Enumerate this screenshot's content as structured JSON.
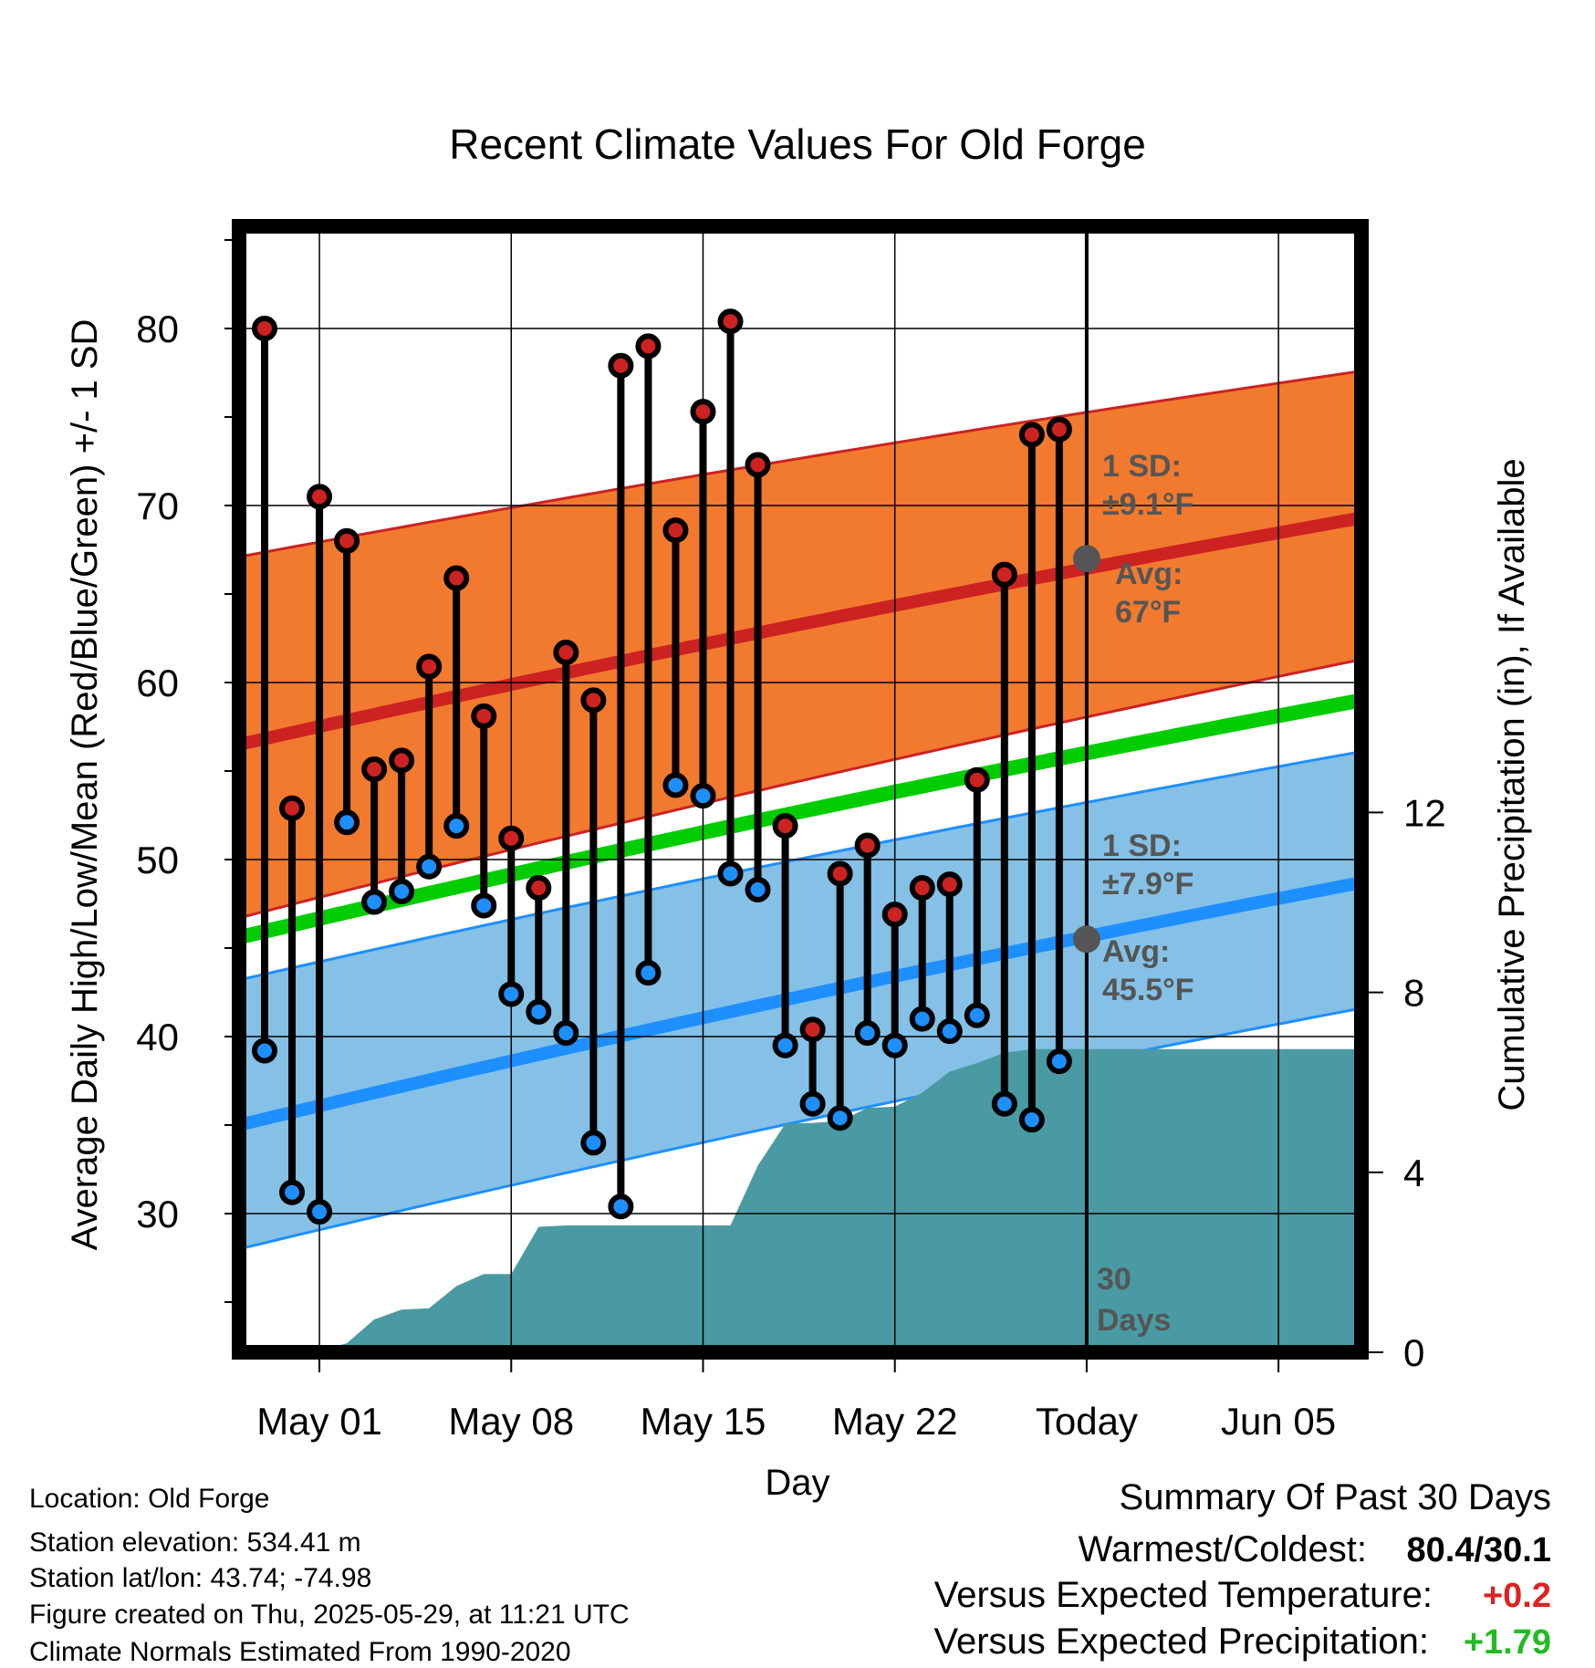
{
  "chart_data": {
    "type": "line",
    "title": "Recent Climate Values For Old Forge",
    "xlabel": "Day",
    "ylabel_left": "Average Daily High/Low/Mean (Red/Blue/Green) +/- 1 SD",
    "ylabel_right": "Cumulative Precipitation (in), If Available",
    "ylim_left": [
      22.5,
      86
    ],
    "ylim_right": [
      0,
      30
    ],
    "x_tick_labels": [
      "May 01",
      "May 08",
      "May 15",
      "May 22",
      "Today",
      "Jun 05"
    ],
    "y_tick_labels_left": [
      "30",
      "40",
      "50",
      "60",
      "70",
      "80"
    ],
    "y_tick_labels_right": [
      "0",
      "4",
      "8",
      "12"
    ],
    "today_label": "30\nDays",
    "days": [
      "Apr 29",
      "Apr 30",
      "May 01",
      "May 02",
      "May 03",
      "May 04",
      "May 05",
      "May 06",
      "May 07",
      "May 08",
      "May 09",
      "May 10",
      "May 11",
      "May 12",
      "May 13",
      "May 14",
      "May 15",
      "May 16",
      "May 17",
      "May 18",
      "May 19",
      "May 20",
      "May 21",
      "May 22",
      "May 23",
      "May 24",
      "May 25",
      "May 26",
      "May 27",
      "May 28"
    ],
    "series": [
      {
        "name": "Daily High",
        "color": "#cc2222",
        "values": [
          80.0,
          52.9,
          70.5,
          68.0,
          55.1,
          55.6,
          60.9,
          65.9,
          58.1,
          51.2,
          48.4,
          61.7,
          59.0,
          77.9,
          79.0,
          68.6,
          75.3,
          80.4,
          72.3,
          51.9,
          40.4,
          49.2,
          50.8,
          46.9,
          48.4,
          48.6,
          54.5,
          66.1,
          74.0,
          74.3
        ]
      },
      {
        "name": "Daily Low",
        "color": "#1e8fff",
        "values": [
          39.2,
          31.2,
          30.1,
          52.1,
          47.6,
          48.2,
          49.6,
          51.9,
          47.4,
          42.4,
          41.4,
          40.2,
          34.0,
          30.4,
          43.6,
          54.2,
          53.6,
          49.2,
          48.3,
          39.5,
          36.2,
          35.4,
          40.2,
          39.5,
          41.0,
          40.3,
          41.2,
          36.2,
          35.3,
          38.6
        ]
      },
      {
        "name": "Cumulative Precipitation",
        "color": "#4a9aa3",
        "values": [
          0.0,
          0.0,
          0.03,
          0.2,
          0.73,
          0.95,
          0.98,
          1.47,
          1.74,
          1.74,
          2.79,
          2.82,
          2.82,
          2.82,
          2.82,
          2.82,
          2.82,
          2.82,
          4.15,
          5.08,
          5.1,
          5.14,
          5.43,
          5.46,
          5.77,
          6.24,
          6.43,
          6.66,
          6.74,
          6.74
        ]
      }
    ],
    "normals": {
      "high_mean": {
        "start": 56.5,
        "end": 69.3
      },
      "high_sd_upper": {
        "start": 67.1,
        "end": 77.6
      },
      "high_sd_lower": {
        "start": 46.7,
        "end": 61.3
      },
      "daily_mean": {
        "start": 45.6,
        "end": 59.0
      },
      "low_mean": {
        "start": 35.0,
        "end": 48.7
      },
      "low_sd_upper": {
        "start": 43.2,
        "end": 56.1
      },
      "low_sd_lower": {
        "start": 28.0,
        "end": 41.6
      }
    },
    "annotations": {
      "high_sd": "1 SD:",
      "high_sd_value": "±9.1°F",
      "high_avg": "Avg:",
      "high_avg_value": "67°F",
      "low_sd": "1 SD:",
      "low_sd_value": "±7.9°F",
      "low_avg": "Avg:",
      "low_avg_value": "45.5°F",
      "today_high_avg": 67.0,
      "today_low_avg": 45.5
    },
    "grid": true,
    "colors": {
      "high_band": "#f27a2e",
      "high_line": "#cc2222",
      "low_band": "#85c1e6",
      "low_line": "#1e8fff",
      "mean_line": "#00cc00",
      "precip": "#4a9aa3",
      "annotation": "#555555"
    }
  },
  "info": {
    "location": "Location: Old Forge",
    "elevation": "Station elevation: 534.41 m",
    "latlon": "Station lat/lon: 43.74; -74.98",
    "created": "Figure created on Thu, 2025-05-29, at 11:21 UTC",
    "normals": "Climate Normals Estimated From 1990-2020"
  },
  "summary": {
    "title": "Summary Of Past 30 Days",
    "warm_cold_label": "Warmest/Coldest:",
    "warm_cold_value": "80.4/30.1",
    "temp_label": "Versus Expected Temperature:",
    "temp_value": "+0.2",
    "temp_color": "#dd2222",
    "precip_label": "Versus Expected Precipitation:",
    "precip_value": "+1.79",
    "precip_color": "#22bb22"
  }
}
